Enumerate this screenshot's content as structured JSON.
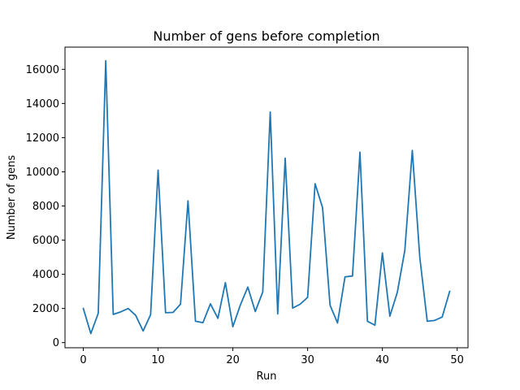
{
  "chart_data": {
    "type": "line",
    "title": "Number of gens before completion",
    "xlabel": "Run",
    "ylabel": "Number of gens",
    "xlim": [
      -2.45,
      51.45
    ],
    "ylim": [
      -300,
      17300
    ],
    "xticks": [
      0,
      10,
      20,
      30,
      40,
      50
    ],
    "yticks": [
      0,
      2000,
      4000,
      6000,
      8000,
      10000,
      12000,
      14000,
      16000
    ],
    "grid": false,
    "series": [
      {
        "color": "#1f77b4",
        "x": [
          0,
          1,
          2,
          3,
          4,
          5,
          6,
          7,
          8,
          9,
          10,
          11,
          12,
          13,
          14,
          15,
          16,
          17,
          18,
          19,
          20,
          21,
          22,
          23,
          24,
          25,
          26,
          27,
          28,
          29,
          30,
          31,
          32,
          33,
          34,
          35,
          36,
          37,
          38,
          39,
          40,
          41,
          42,
          43,
          44,
          45,
          46,
          47,
          48,
          49
        ],
        "values": [
          2000,
          530,
          1720,
          16500,
          1650,
          1800,
          2000,
          1600,
          680,
          1640,
          10100,
          1750,
          1770,
          2250,
          8300,
          1250,
          1170,
          2270,
          1420,
          3510,
          930,
          2200,
          3250,
          1820,
          2970,
          13500,
          1680,
          10800,
          2020,
          2250,
          2650,
          9300,
          7900,
          2190,
          1150,
          3850,
          3900,
          11150,
          1250,
          1020,
          5250,
          1550,
          2950,
          5400,
          11250,
          5000,
          1250,
          1300,
          1500,
          3000
        ]
      }
    ]
  }
}
